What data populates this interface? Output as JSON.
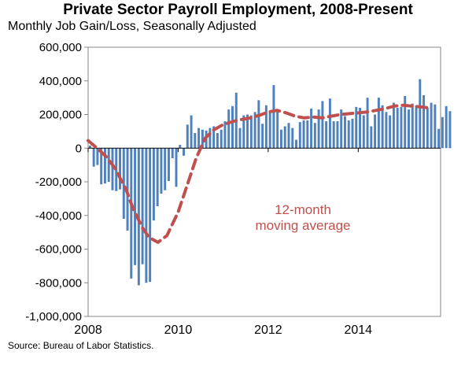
{
  "chart_data": {
    "type": "bar",
    "title": "Private Sector Payroll Employment, 2008-Present",
    "subtitle": "Monthly Job Gain/Loss, Seasonally Adjusted",
    "source": "Source: Bureau of Labor Statistics.",
    "annotation": [
      "12-month",
      "moving average"
    ],
    "xlabel": "",
    "ylabel": "",
    "ylim": [
      -1000000,
      600000
    ],
    "xlim": [
      2008,
      2015.83
    ],
    "y_ticks": [
      600000,
      400000,
      200000,
      0,
      -200000,
      -400000,
      -600000,
      -800000,
      -1000000
    ],
    "y_tick_labels": [
      "600,000",
      "400,000",
      "200,000",
      "0",
      "-200,000",
      "-400,000",
      "-600,000",
      "-800,000",
      "-1,000,000"
    ],
    "x_ticks": [
      2008,
      2010,
      2012,
      2014
    ],
    "x_tick_labels": [
      "2008",
      "2010",
      "2012",
      "2014"
    ],
    "grid": false,
    "legend": "none",
    "colors": {
      "bars": "#4f81bd",
      "moving_average": "#c0504d"
    },
    "series": [
      {
        "kind": "bar",
        "x_start": 2008.0,
        "x_step": 0.0833,
        "values": [
          15000,
          -110000,
          -100000,
          -215000,
          -210000,
          -200000,
          -250000,
          -255000,
          -245000,
          -420000,
          -490000,
          -775000,
          -695000,
          -815000,
          -690000,
          -800000,
          -795000,
          -430000,
          -345000,
          -270000,
          -250000,
          -195000,
          -60000,
          -230000,
          20000,
          -45000,
          140000,
          195000,
          90000,
          120000,
          110000,
          105000,
          120000,
          130000,
          90000,
          110000,
          160000,
          230000,
          250000,
          330000,
          120000,
          195000,
          200000,
          195000,
          215000,
          285000,
          145000,
          255000,
          220000,
          375000,
          220000,
          110000,
          130000,
          150000,
          120000,
          50000,
          155000,
          165000,
          165000,
          235000,
          150000,
          230000,
          280000,
          160000,
          295000,
          160000,
          160000,
          230000,
          190000,
          165000,
          175000,
          245000,
          240000,
          195000,
          300000,
          130000,
          200000,
          300000,
          255000,
          215000,
          195000,
          270000,
          240000,
          245000,
          310000,
          230000,
          265000,
          255000,
          410000,
          315000,
          240000,
          270000,
          260000,
          115000,
          185000,
          250000,
          220000
        ]
      },
      {
        "kind": "line",
        "style": "dashed",
        "points": [
          [
            2008.0,
            45000
          ],
          [
            2008.2,
            0
          ],
          [
            2008.4,
            -50000
          ],
          [
            2008.6,
            -120000
          ],
          [
            2008.85,
            -250000
          ],
          [
            2009.0,
            -360000
          ],
          [
            2009.2,
            -470000
          ],
          [
            2009.35,
            -530000
          ],
          [
            2009.55,
            -560000
          ],
          [
            2009.75,
            -520000
          ],
          [
            2010.0,
            -380000
          ],
          [
            2010.2,
            -220000
          ],
          [
            2010.4,
            -60000
          ],
          [
            2010.6,
            60000
          ],
          [
            2010.8,
            110000
          ],
          [
            2011.0,
            140000
          ],
          [
            2011.3,
            165000
          ],
          [
            2011.6,
            180000
          ],
          [
            2011.8,
            195000
          ],
          [
            2012.0,
            215000
          ],
          [
            2012.2,
            225000
          ],
          [
            2012.4,
            210000
          ],
          [
            2012.6,
            190000
          ],
          [
            2012.8,
            180000
          ],
          [
            2013.0,
            185000
          ],
          [
            2013.2,
            180000
          ],
          [
            2013.4,
            190000
          ],
          [
            2013.6,
            200000
          ],
          [
            2013.8,
            205000
          ],
          [
            2014.0,
            210000
          ],
          [
            2014.2,
            215000
          ],
          [
            2014.4,
            225000
          ],
          [
            2014.6,
            235000
          ],
          [
            2014.8,
            250000
          ],
          [
            2015.0,
            255000
          ],
          [
            2015.2,
            250000
          ],
          [
            2015.4,
            245000
          ],
          [
            2015.55,
            240000
          ]
        ]
      }
    ]
  }
}
